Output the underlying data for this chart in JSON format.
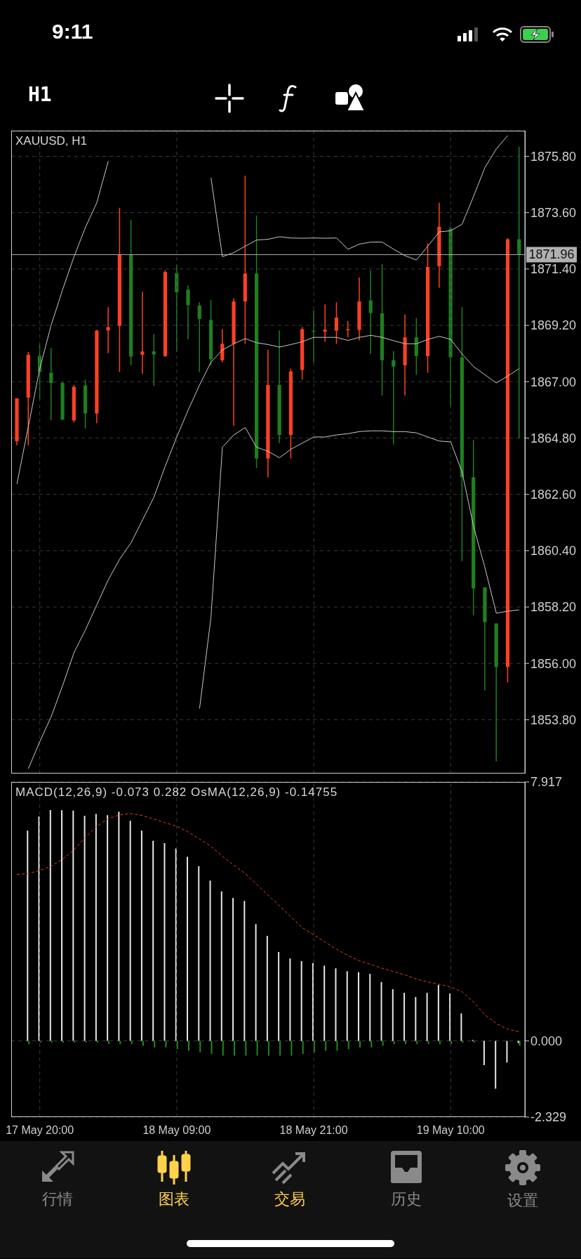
{
  "chart_data": [
    {
      "type": "other",
      "annotations": [
        "9:11",
        "H1"
      ]
    },
    {
      "type": "candlestick",
      "title": "XAUUSD, H1",
      "categories": [
        null,
        null,
        null,
        null,
        null,
        null,
        null,
        null,
        null,
        null,
        null,
        null,
        null,
        null,
        null,
        null,
        null,
        null,
        null,
        null,
        null,
        null,
        null,
        null,
        null,
        null,
        null,
        null,
        null,
        null,
        null,
        null,
        null,
        null,
        null,
        null,
        null,
        null,
        null,
        null,
        null,
        null,
        null,
        null,
        null
      ],
      "ohlc": [
        [
          1864.68,
          1866.35,
          1864.52,
          1866.35
        ],
        [
          1866.38,
          1868.16,
          1864.52,
          1868.05
        ],
        [
          1868.01,
          1868.48,
          1866.3,
          1867.38
        ],
        [
          1867.35,
          1868.32,
          1865.49,
          1866.95
        ],
        [
          1866.95,
          1866.99,
          1865.49,
          1865.52
        ],
        [
          1865.49,
          1866.87,
          1865.41,
          1866.8
        ],
        [
          1866.85,
          1867.08,
          1865.17,
          1865.76
        ],
        [
          1865.76,
          1869.03,
          1865.38,
          1868.99
        ],
        [
          1869.0,
          1869.91,
          1868.11,
          1869.13
        ],
        [
          1869.18,
          1873.79,
          1867.38,
          1871.96
        ],
        [
          1871.96,
          1873.32,
          1867.64,
          1867.98
        ],
        [
          1868.05,
          1870.51,
          1867.3,
          1868.18
        ],
        [
          1868.18,
          1868.86,
          1866.83,
          1868.06
        ],
        [
          1868.0,
          1871.35,
          1867.97,
          1871.28
        ],
        [
          1871.24,
          1871.56,
          1868.16,
          1870.49
        ],
        [
          1870.59,
          1870.75,
          1868.65,
          1869.99
        ],
        [
          1869.97,
          1870.1,
          1867.38,
          1869.45
        ],
        [
          1869.41,
          1870.18,
          1867.64,
          1867.87
        ],
        [
          1867.84,
          1869.05,
          1867.76,
          1868.48
        ],
        [
          1868.48,
          1870.26,
          1865.28,
          1870.13
        ],
        [
          1870.13,
          1875.04,
          1868.48,
          1871.22
        ],
        [
          1871.22,
          1873.49,
          1863.63,
          1864.0
        ],
        [
          1864.0,
          1868.24,
          1863.26,
          1866.87
        ],
        [
          1866.87,
          1869.0,
          1864.6,
          1864.92
        ],
        [
          1864.92,
          1867.51,
          1864.0,
          1867.4
        ],
        [
          1867.46,
          1869.13,
          1867.08,
          1869.05
        ],
        [
          1868.99,
          1869.78,
          1867.76,
          1868.95
        ],
        [
          1868.95,
          1870.02,
          1868.56,
          1869.03
        ],
        [
          1868.99,
          1870.1,
          1868.48,
          1869.5
        ],
        [
          1869.02,
          1869.37,
          1868.73,
          1869.05
        ],
        [
          1869.02,
          1871.07,
          1868.61,
          1870.13
        ],
        [
          1870.17,
          1871.35,
          1868.08,
          1869.68
        ],
        [
          1869.67,
          1871.59,
          1866.46,
          1867.84
        ],
        [
          1867.84,
          1868.19,
          1864.55,
          1867.59
        ],
        [
          1867.64,
          1869.62,
          1866.46,
          1868.73
        ],
        [
          1868.73,
          1869.49,
          1867.27,
          1868.0
        ],
        [
          1868.0,
          1872.4,
          1867.35,
          1871.48
        ],
        [
          1871.51,
          1873.99,
          1870.67,
          1873.05
        ],
        [
          1872.98,
          1873.05,
          1866.01,
          1867.95
        ],
        [
          1867.95,
          1869.91,
          1859.99,
          1863.27
        ],
        [
          1863.27,
          1864.73,
          1857.88,
          1858.93
        ],
        [
          1858.97,
          1858.97,
          1854.94,
          1857.61
        ],
        [
          1857.56,
          1857.56,
          1852.17,
          1855.86
        ],
        [
          1855.86,
          1872.61,
          1855.26,
          1872.56
        ],
        [
          1872.56,
          1876.17,
          1864.79,
          1871.96
        ]
      ],
      "colors": [
        "#ff4024",
        "#ff4024",
        "#1f7f1f",
        "#1f7f1f",
        "#1f7f1f",
        "#ff4024",
        "#1f7f1f",
        "#ff4024",
        "#ff4024",
        "#ff4024",
        "#1f7f1f",
        "#ff4024",
        "#1f7f1f",
        "#ff4024",
        "#1f7f1f",
        "#1f7f1f",
        "#1f7f1f",
        "#1f7f1f",
        "#ff4024",
        "#ff4024",
        "#ff4024",
        "#1f7f1f",
        "#ff4024",
        "#1f7f1f",
        "#ff4024",
        "#ff4024",
        "#1f7f1f",
        "#ff4024",
        "#ff4024",
        "#ff4024",
        "#ff4024",
        "#1f7f1f",
        "#1f7f1f",
        "#1f7f1f",
        "#ff4024",
        "#1f7f1f",
        "#ff4024",
        "#ff4024",
        "#1f7f1f",
        "#1f7f1f",
        "#1f7f1f",
        "#1f7f1f",
        "#1f7f1f",
        "#ff4024",
        "#1f7f1f"
      ],
      "series": [
        {
          "type": "line",
          "color": "#c8c8c8",
          "values": [
            1863.01,
            1865.25,
            1867.51,
            1869.21,
            1870.59,
            1871.88,
            1873.02,
            1873.99,
            1875.61,
            null,
            null,
            null,
            null,
            null,
            null,
            null,
            null,
            1874.96,
            1871.88,
            1872.04,
            1872.29,
            1872.53,
            1872.56,
            1872.66,
            1872.61,
            1872.6,
            1872.61,
            1872.6,
            1872.61,
            1872.17,
            1872.37,
            1872.45,
            1872.45,
            1872.17,
            1871.92,
            1871.75,
            1872.29,
            1872.85,
            1872.89,
            1873.15,
            1874.23,
            1875.36,
            1876.09,
            1876.61,
            null
          ]
        },
        {
          "type": "line",
          "color": "#c8c8c8",
          "values": [
            null,
            1851.89,
            1852.94,
            1853.92,
            1855.13,
            1856.42,
            1857.31,
            1858.29,
            1859.26,
            1860.07,
            1860.71,
            1861.6,
            1862.49,
            1863.71,
            1864.84,
            1865.89,
            1866.87,
            1867.76,
            1868.24,
            1868.48,
            1868.68,
            1868.52,
            1868.45,
            1868.35,
            1868.45,
            1868.56,
            1868.73,
            1868.73,
            1868.73,
            1868.61,
            1868.73,
            1868.81,
            1868.73,
            1868.6,
            1868.48,
            1868.48,
            1868.65,
            1868.77,
            1868.65,
            1868.08,
            1867.59,
            1867.27,
            1866.95,
            1867.22,
            1867.51
          ]
        },
        {
          "type": "line",
          "color": "#c8c8c8",
          "values": [
            null,
            null,
            null,
            null,
            null,
            null,
            null,
            null,
            null,
            null,
            null,
            null,
            null,
            null,
            null,
            null,
            1854.24,
            1857.8,
            1864.44,
            1864.92,
            1865.21,
            1864.44,
            1864.28,
            1864.03,
            1864.36,
            1864.6,
            1864.84,
            1864.84,
            1864.92,
            1864.97,
            1865.05,
            1865.08,
            1865.08,
            1865.05,
            1865.05,
            1865.0,
            1864.84,
            1864.68,
            1864.65,
            1863.47,
            1861.36,
            1859.74,
            1857.96,
            1858.04,
            1858.09
          ]
        }
      ],
      "ylim": [
        1851.7,
        1876.8
      ],
      "yticks": [
        {
          "value": 1853.8,
          "label": "1853.80"
        },
        {
          "value": 1856,
          "label": "1856.00"
        },
        {
          "value": 1858.2,
          "label": "1858.20"
        },
        {
          "value": 1860.4,
          "label": "1860.40"
        },
        {
          "value": 1862.6,
          "label": "1862.60"
        },
        {
          "value": 1864.8,
          "label": "1864.80"
        },
        {
          "value": 1867,
          "label": "1867.00"
        },
        {
          "value": 1869.2,
          "label": "1869.20"
        },
        {
          "value": 1871.4,
          "label": "1871.40"
        },
        {
          "value": 1873.6,
          "label": "1873.60"
        },
        {
          "value": 1875.8,
          "label": "1875.80"
        }
      ],
      "ref_lines": [
        {
          "axis": "y",
          "value": 1871.96,
          "label": "1871.96",
          "color": "#b0b0b0"
        }
      ],
      "grid": true,
      "tick_labels": "y"
    },
    {
      "type": "bar",
      "title": "MACD(12,26,9) -0.073 0.282 OsMA(12,26,9) -0.14755",
      "categories": [
        null,
        null,
        "17 May 20:00",
        null,
        null,
        null,
        null,
        null,
        null,
        null,
        null,
        null,
        null,
        null,
        "18 May 09:00",
        null,
        null,
        null,
        null,
        null,
        null,
        null,
        null,
        null,
        null,
        null,
        "18 May 21:00",
        null,
        null,
        null,
        null,
        null,
        null,
        null,
        null,
        null,
        null,
        null,
        "19 May 10:00",
        null,
        null,
        null,
        null,
        null,
        null
      ],
      "series": [
        {
          "color": "#e6e6e6",
          "values": [
            null,
            6.43,
            6.86,
            7.06,
            7.05,
            7.04,
            6.88,
            6.94,
            6.9,
            7.01,
            6.73,
            6.43,
            6.12,
            6.05,
            5.88,
            5.63,
            5.34,
            4.9,
            4.57,
            4.37,
            4.28,
            3.57,
            3.21,
            2.72,
            2.52,
            2.44,
            2.38,
            2.3,
            2.22,
            2.13,
            2.1,
            2.05,
            1.8,
            1.58,
            1.47,
            1.34,
            1.47,
            1.71,
            1.45,
            0.84,
            0.03,
            -0.74,
            -1.46,
            -0.66,
            -0.07
          ]
        },
        {
          "color": "#1f8a1f",
          "values": [
            null,
            -0.1,
            -0.05,
            -0.05,
            -0.05,
            -0.05,
            -0.05,
            -0.05,
            -0.1,
            -0.1,
            -0.1,
            -0.15,
            -0.2,
            -0.2,
            -0.25,
            -0.3,
            -0.35,
            -0.4,
            -0.45,
            -0.45,
            -0.45,
            -0.45,
            -0.45,
            -0.45,
            -0.45,
            -0.4,
            -0.35,
            -0.3,
            -0.3,
            -0.25,
            -0.2,
            -0.2,
            -0.15,
            -0.1,
            -0.1,
            -0.1,
            -0.1,
            -0.1,
            -0.1,
            -0.05,
            -0.05,
            null,
            null,
            null,
            -0.15
          ]
        },
        {
          "type": "line",
          "color": "#e0401e",
          "line_style": "dashed",
          "values": [
            5.09,
            5.12,
            5.21,
            5.34,
            5.56,
            5.84,
            6.23,
            6.56,
            6.8,
            6.91,
            6.95,
            6.89,
            6.78,
            6.67,
            6.56,
            6.39,
            6.17,
            5.95,
            5.65,
            5.37,
            5.12,
            4.79,
            4.46,
            4.13,
            3.79,
            3.46,
            3.24,
            3.02,
            2.8,
            2.61,
            2.45,
            2.34,
            2.22,
            2.12,
            2.02,
            1.89,
            1.8,
            1.73,
            1.65,
            1.5,
            1.19,
            0.8,
            0.53,
            0.36,
            0.28
          ]
        }
      ],
      "ylim": [
        -2.329,
        7.917
      ],
      "yticks": [
        -2.329,
        {
          "value": 0,
          "label": "0.000"
        },
        7.917
      ],
      "grid": true
    },
    {
      "type": "other",
      "annotations": [
        "行情",
        "图表",
        "交易",
        "历史",
        "设置"
      ]
    }
  ]
}
